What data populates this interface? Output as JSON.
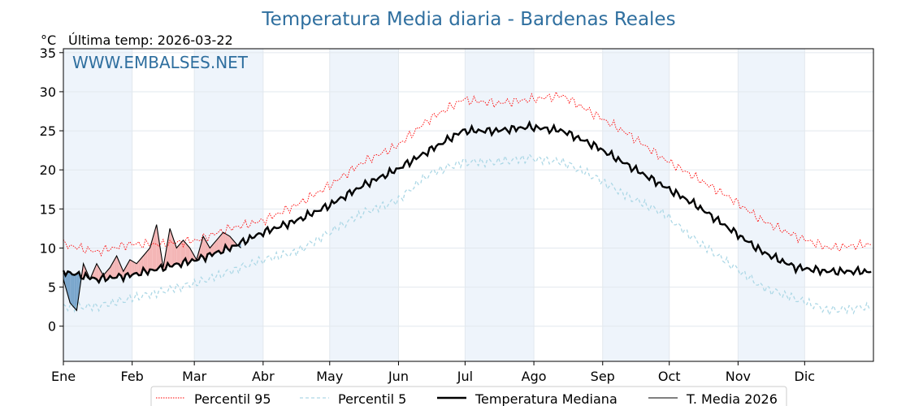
{
  "chart_data": {
    "type": "line",
    "title": "Temperatura Media diaria - Bardenas Reales",
    "unit_label": "°C",
    "last_temp_label": "Última temp: 2026-03-22",
    "watermark": "WWW.EMBALSES.NET",
    "xlim": [
      0,
      365
    ],
    "ylim": [
      -4.5,
      35.5
    ],
    "y_ticks": [
      0,
      5,
      10,
      15,
      20,
      25,
      30,
      35
    ],
    "months": [
      "Ene",
      "Feb",
      "Mar",
      "Abr",
      "May",
      "Jun",
      "Jul",
      "Ago",
      "Sep",
      "Oct",
      "Nov",
      "Dic"
    ],
    "month_start_days": [
      0,
      31,
      59,
      90,
      120,
      151,
      181,
      212,
      243,
      273,
      304,
      334
    ],
    "shaded_months": [
      "Ene",
      "Mar",
      "May",
      "Jul",
      "Sep",
      "Nov"
    ],
    "grid": true,
    "legend_position": "bottom",
    "colors": {
      "p95": "#ff0000",
      "p5": "#add8e6",
      "median": "#000000",
      "current": "#000000",
      "above_fill": "#f4b6b6",
      "below_fill": "#7aa6cc",
      "month_shade": "#eef4fb",
      "title": "#2f6f9f"
    },
    "x_days": [
      0,
      15,
      30,
      45,
      60,
      75,
      90,
      105,
      120,
      135,
      150,
      165,
      180,
      195,
      210,
      225,
      240,
      255,
      270,
      285,
      300,
      315,
      330,
      345,
      364
    ],
    "series": [
      {
        "name": "Percentil 95",
        "style": "dotted-red",
        "values": [
          10.5,
          9.5,
          10.5,
          10.5,
          11.0,
          12.5,
          13.5,
          15.5,
          18.0,
          21.0,
          23.0,
          26.5,
          29.0,
          28.5,
          29.0,
          29.5,
          27.0,
          24.5,
          21.5,
          19.0,
          16.5,
          13.5,
          11.5,
          10.0,
          10.5
        ]
      },
      {
        "name": "Percentil 5",
        "style": "dashed-lightblue",
        "values": [
          2.5,
          2.5,
          3.5,
          4.5,
          5.5,
          7.0,
          8.5,
          9.5,
          12.0,
          14.5,
          16.0,
          19.5,
          21.0,
          21.0,
          21.5,
          21.0,
          19.0,
          16.5,
          14.5,
          11.0,
          8.0,
          5.0,
          3.5,
          2.0,
          2.5
        ]
      },
      {
        "name": "Temperatura Mediana",
        "style": "thick-black",
        "values": [
          7.0,
          6.0,
          6.5,
          7.5,
          8.5,
          10.0,
          12.0,
          13.5,
          15.5,
          18.0,
          20.0,
          22.5,
          25.0,
          25.0,
          25.5,
          25.0,
          23.0,
          20.5,
          18.0,
          15.5,
          12.5,
          9.5,
          7.5,
          7.0,
          7.0
        ]
      },
      {
        "name": "T. Media 2026",
        "style": "thin-black",
        "x": [
          0,
          3,
          6,
          9,
          12,
          15,
          18,
          21,
          24,
          27,
          30,
          33,
          36,
          39,
          42,
          45,
          48,
          51,
          54,
          57,
          60,
          63,
          66,
          69,
          72,
          75,
          78,
          80
        ],
        "values": [
          6.0,
          3.0,
          2.0,
          8.0,
          6.0,
          8.0,
          6.5,
          7.5,
          9.0,
          7.0,
          8.5,
          8.0,
          9.0,
          10.0,
          13.0,
          7.5,
          12.5,
          10.0,
          11.0,
          10.0,
          8.5,
          11.5,
          10.0,
          11.0,
          12.0,
          11.5,
          10.5,
          10.0
        ]
      }
    ],
    "legend": [
      {
        "label": "Percentil 95",
        "style": "dotted-red"
      },
      {
        "label": "Percentil 5",
        "style": "dashed-lightblue"
      },
      {
        "label": "Temperatura Mediana",
        "style": "thick-black"
      },
      {
        "label": "T. Media 2026",
        "style": "thin-black"
      }
    ]
  }
}
